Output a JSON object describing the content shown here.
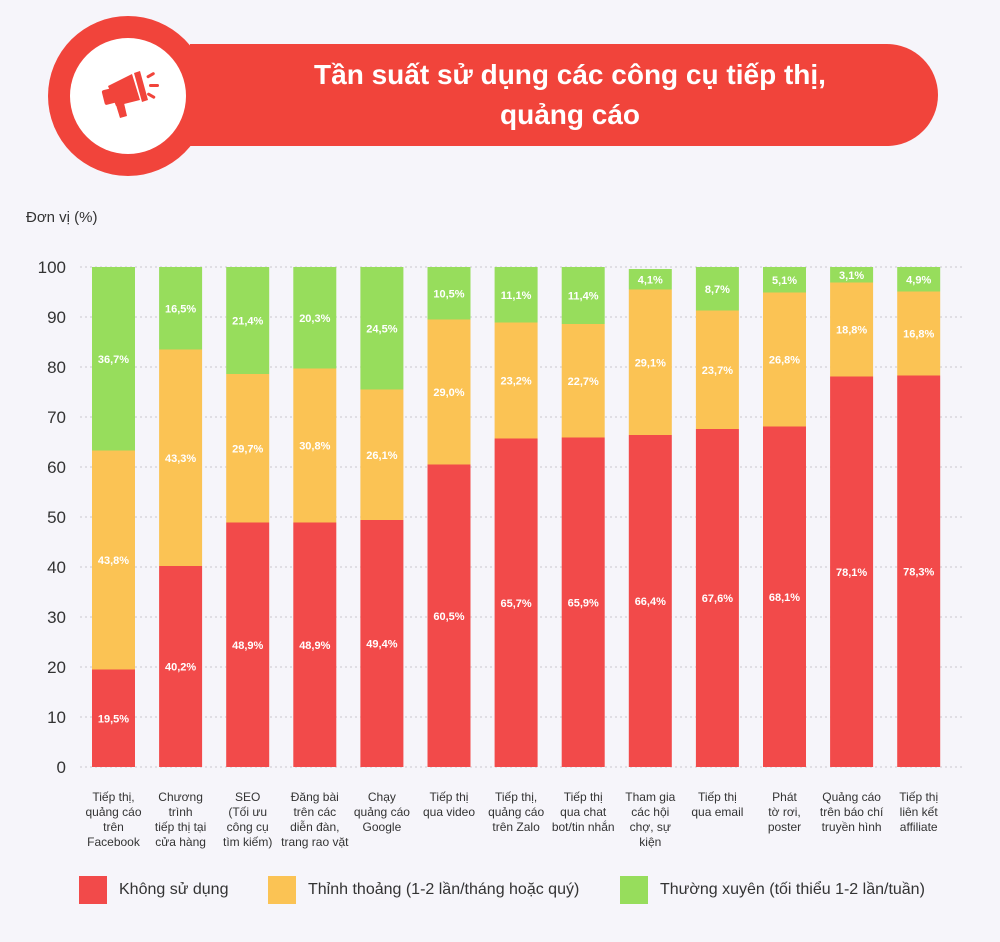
{
  "title": {
    "line1": "Tần suất sử dụng các công cụ tiếp thị,",
    "line2": "quảng cáo"
  },
  "icon": "megaphone-icon",
  "colors": {
    "red": "#f24a4a",
    "orange": "#fbc354",
    "green": "#97dd5c",
    "accent": "#f1443b"
  },
  "chart_data": {
    "type": "bar",
    "stacked": true,
    "unit_label": "Đơn vị (%)",
    "ylim": [
      0,
      100
    ],
    "yticks": [
      "0",
      "10",
      "20",
      "30",
      "40",
      "50",
      "60",
      "70",
      "80",
      "90",
      "100"
    ],
    "grid": "dotted horizontal",
    "legend_position": "bottom",
    "categories": [
      [
        "Tiếp thị,",
        "quảng cáo",
        "trên",
        "Facebook"
      ],
      [
        "Chương",
        "trình",
        "tiếp thị tại",
        "cửa hàng"
      ],
      [
        "SEO",
        "(Tối ưu",
        "công cụ",
        "tìm kiếm)"
      ],
      [
        "Đăng bài",
        "trên các",
        "diễn đàn,",
        "trang rao vặt"
      ],
      [
        "Chạy",
        "quảng cáo",
        "Google"
      ],
      [
        "Tiếp thị",
        "qua video"
      ],
      [
        "Tiếp thị,",
        "quảng cáo",
        "trên Zalo"
      ],
      [
        "Tiếp thị",
        "qua chat",
        "bot/tin nhắn"
      ],
      [
        "Tham gia",
        "các hội",
        "chợ, sự",
        "kiện"
      ],
      [
        "Tiếp thị",
        "qua email"
      ],
      [
        "Phát",
        "tờ rơi,",
        "poster"
      ],
      [
        "Quảng cáo",
        "trên báo chí",
        "truyền hình"
      ],
      [
        "Tiếp thị",
        "liên kết",
        "affiliate"
      ]
    ],
    "series": [
      {
        "name": "Không sử dụng",
        "color": "#f24a4a",
        "values": [
          19.5,
          40.2,
          48.9,
          48.9,
          49.4,
          60.5,
          65.7,
          65.9,
          66.4,
          67.6,
          68.1,
          78.1,
          78.3
        ],
        "labels": [
          "19,5%",
          "40,2%",
          "48,9%",
          "48,9%",
          "49,4%",
          "60,5%",
          "65,7%",
          "65,9%",
          "66,4%",
          "67,6%",
          "68,1%",
          "78,1%",
          "78,3%"
        ]
      },
      {
        "name": "Thỉnh thoảng (1-2 lần/tháng hoặc quý)",
        "color": "#fbc354",
        "values": [
          43.8,
          43.3,
          29.7,
          30.8,
          26.1,
          29.0,
          23.2,
          22.7,
          29.1,
          23.7,
          26.8,
          18.8,
          16.8
        ],
        "labels": [
          "43,8%",
          "43,3%",
          "29,7%",
          "30,8%",
          "26,1%",
          "29,0%",
          "23,2%",
          "22,7%",
          "29,1%",
          "23,7%",
          "26,8%",
          "18,8%",
          "16,8%"
        ]
      },
      {
        "name": "Thường xuyên (tối thiểu 1-2 lần/tuần)",
        "color": "#97dd5c",
        "values": [
          36.7,
          16.5,
          21.4,
          20.3,
          24.5,
          10.5,
          11.1,
          11.4,
          4.1,
          8.7,
          5.1,
          3.1,
          4.9
        ],
        "labels": [
          "36,7%",
          "16,5%",
          "21,4%",
          "20,3%",
          "24,5%",
          "10,5%",
          "11,1%",
          "11,4%",
          "4,1%",
          "8,7%",
          "5,1%",
          "3,1%",
          "4,9%"
        ]
      }
    ]
  }
}
